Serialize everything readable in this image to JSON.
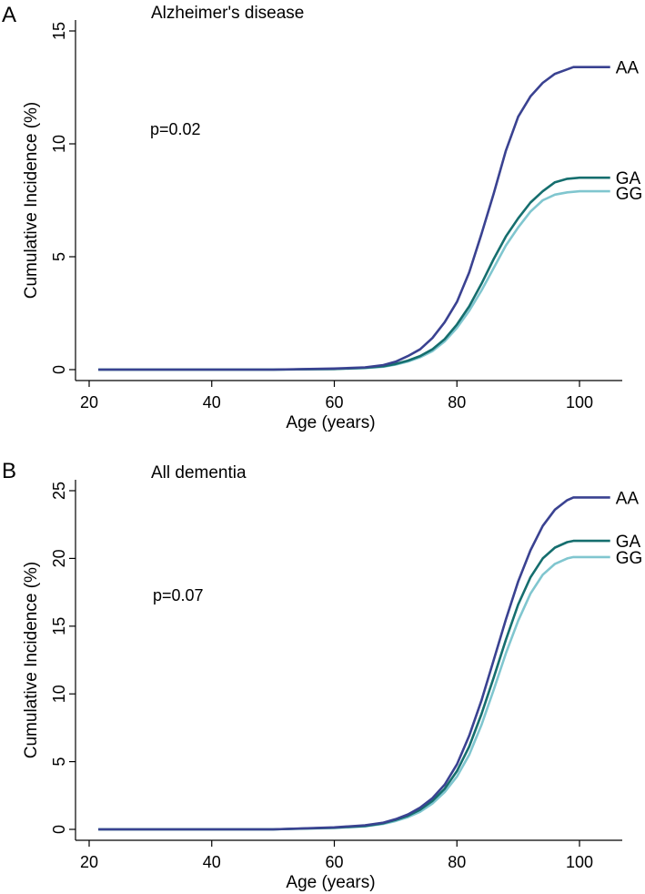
{
  "chart_data": [
    {
      "type": "line",
      "panel": "A",
      "title": "Alzheimer's disease",
      "annotation": "p=0.02",
      "xlabel": "Age (years)",
      "ylabel": "Cumulative Incidence (%)",
      "xlim": [
        18,
        107
      ],
      "ylim": [
        0,
        15
      ],
      "xticks": [
        20,
        40,
        60,
        80,
        100
      ],
      "yticks": [
        0,
        5,
        10,
        15
      ],
      "series": [
        {
          "name": "AA",
          "color": "#3a4291",
          "x": [
            21.5,
            50,
            60,
            65,
            68,
            70,
            72,
            74,
            76,
            78,
            80,
            82,
            84,
            86,
            88,
            90,
            92,
            94,
            96,
            98,
            99,
            100,
            105
          ],
          "y": [
            0,
            0,
            0.05,
            0.1,
            0.2,
            0.35,
            0.6,
            0.9,
            1.4,
            2.1,
            3.0,
            4.3,
            6.0,
            7.8,
            9.7,
            11.2,
            12.1,
            12.7,
            13.1,
            13.3,
            13.4,
            13.4,
            13.4
          ]
        },
        {
          "name": "GA",
          "color": "#156e6e",
          "x": [
            21.5,
            50,
            60,
            65,
            68,
            70,
            72,
            74,
            76,
            78,
            80,
            82,
            84,
            86,
            88,
            90,
            92,
            94,
            96,
            98,
            100,
            105
          ],
          "y": [
            0,
            0,
            0.03,
            0.08,
            0.15,
            0.25,
            0.4,
            0.6,
            0.9,
            1.35,
            2.0,
            2.8,
            3.8,
            4.9,
            5.9,
            6.7,
            7.4,
            7.9,
            8.3,
            8.45,
            8.5,
            8.5
          ]
        },
        {
          "name": "GG",
          "color": "#80c6cf",
          "x": [
            21.5,
            50,
            60,
            65,
            68,
            70,
            72,
            74,
            76,
            78,
            80,
            82,
            84,
            86,
            88,
            90,
            92,
            94,
            96,
            98,
            100,
            105
          ],
          "y": [
            0,
            0,
            0.03,
            0.07,
            0.13,
            0.22,
            0.36,
            0.55,
            0.82,
            1.25,
            1.85,
            2.6,
            3.5,
            4.5,
            5.5,
            6.3,
            7.0,
            7.5,
            7.75,
            7.85,
            7.9,
            7.9
          ]
        }
      ]
    },
    {
      "type": "line",
      "panel": "B",
      "title": "All dementia",
      "annotation": "p=0.07",
      "xlabel": "Age (years)",
      "ylabel": "Cumulative Incidence (%)",
      "xlim": [
        18,
        107
      ],
      "ylim": [
        0,
        25
      ],
      "xticks": [
        20,
        40,
        60,
        80,
        100
      ],
      "yticks": [
        0,
        5,
        10,
        15,
        20,
        25
      ],
      "series": [
        {
          "name": "AA",
          "color": "#3a4291",
          "x": [
            21.5,
            50,
            60,
            65,
            68,
            70,
            72,
            74,
            76,
            78,
            80,
            82,
            84,
            86,
            88,
            90,
            92,
            94,
            96,
            98,
            99,
            100,
            105
          ],
          "y": [
            0,
            0,
            0.15,
            0.3,
            0.5,
            0.75,
            1.1,
            1.6,
            2.3,
            3.3,
            4.8,
            6.9,
            9.5,
            12.5,
            15.5,
            18.3,
            20.6,
            22.4,
            23.6,
            24.3,
            24.5,
            24.5,
            24.5
          ]
        },
        {
          "name": "GA",
          "color": "#156e6e",
          "x": [
            21.5,
            50,
            60,
            65,
            68,
            70,
            72,
            74,
            76,
            78,
            80,
            82,
            84,
            86,
            88,
            90,
            92,
            94,
            96,
            98,
            99,
            100,
            105
          ],
          "y": [
            0,
            0,
            0.12,
            0.25,
            0.45,
            0.7,
            1.0,
            1.45,
            2.1,
            3.0,
            4.3,
            6.1,
            8.5,
            11.2,
            14.0,
            16.6,
            18.6,
            20.0,
            20.8,
            21.2,
            21.3,
            21.3,
            21.3
          ]
        },
        {
          "name": "GG",
          "color": "#80c6cf",
          "x": [
            21.5,
            50,
            60,
            65,
            68,
            70,
            72,
            74,
            76,
            78,
            80,
            82,
            84,
            86,
            88,
            90,
            92,
            94,
            96,
            98,
            99,
            100,
            105
          ],
          "y": [
            0,
            0,
            0.1,
            0.22,
            0.4,
            0.62,
            0.9,
            1.3,
            1.9,
            2.75,
            3.9,
            5.5,
            7.7,
            10.3,
            13.0,
            15.4,
            17.4,
            18.8,
            19.6,
            20.0,
            20.1,
            20.1,
            20.1
          ]
        }
      ]
    }
  ]
}
